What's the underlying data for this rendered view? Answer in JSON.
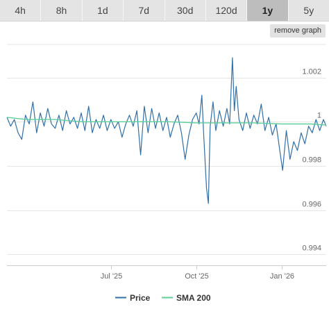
{
  "tabs": [
    {
      "label": "4h",
      "active": false
    },
    {
      "label": "8h",
      "active": false
    },
    {
      "label": "1d",
      "active": false
    },
    {
      "label": "7d",
      "active": false
    },
    {
      "label": "30d",
      "active": false
    },
    {
      "label": "120d",
      "active": false
    },
    {
      "label": "1y",
      "active": true
    },
    {
      "label": "5y",
      "active": false
    }
  ],
  "remove_graph_label": "remove graph",
  "colors": {
    "price": "#2f6fa7",
    "sma": "#5ccf9a",
    "grid": "#e6e6e6",
    "active_tab": "#bdbdbd"
  },
  "chart_data": {
    "type": "line",
    "x_start": "2025-03-11",
    "x_end": "2026-02-18",
    "ylim": [
      0.9935,
      1.0035
    ],
    "yticks": [
      {
        "value": 1.002,
        "label": "1.002"
      },
      {
        "value": 1.0,
        "label": "1"
      },
      {
        "value": 0.998,
        "label": "0.998"
      },
      {
        "value": 0.996,
        "label": "0.996"
      },
      {
        "value": 0.994,
        "label": "0.994"
      }
    ],
    "xticks": [
      {
        "date": "2025-07-01",
        "label": "Jul '25"
      },
      {
        "date": "2025-10-01",
        "label": "Oct '25"
      },
      {
        "date": "2026-01-01",
        "label": "Jan '26"
      }
    ],
    "legend": {
      "position": "bottom-center"
    },
    "grid": true,
    "series": [
      {
        "name": "Price",
        "points": [
          [
            "2025-03-11",
            1.0002
          ],
          [
            "2025-03-15",
            0.9998
          ],
          [
            "2025-03-19",
            1.0001
          ],
          [
            "2025-03-23",
            0.9995
          ],
          [
            "2025-03-27",
            0.9992
          ],
          [
            "2025-03-31",
            1.0003
          ],
          [
            "2025-04-04",
            0.9999
          ],
          [
            "2025-04-08",
            1.0009
          ],
          [
            "2025-04-12",
            0.9995
          ],
          [
            "2025-04-16",
            1.0004
          ],
          [
            "2025-04-20",
            0.9998
          ],
          [
            "2025-04-24",
            1.0006
          ],
          [
            "2025-04-28",
            0.9999
          ],
          [
            "2025-05-02",
            0.9997
          ],
          [
            "2025-05-06",
            1.0003
          ],
          [
            "2025-05-10",
            0.9996
          ],
          [
            "2025-05-14",
            1.0005
          ],
          [
            "2025-05-18",
            0.9999
          ],
          [
            "2025-05-22",
            1.0002
          ],
          [
            "2025-05-26",
            0.9997
          ],
          [
            "2025-05-30",
            1.0004
          ],
          [
            "2025-06-03",
            0.9996
          ],
          [
            "2025-06-07",
            1.0007
          ],
          [
            "2025-06-11",
            0.9995
          ],
          [
            "2025-06-15",
            1.0001
          ],
          [
            "2025-06-19",
            0.9997
          ],
          [
            "2025-06-23",
            1.0003
          ],
          [
            "2025-06-27",
            0.9996
          ],
          [
            "2025-07-01",
            1.0001
          ],
          [
            "2025-07-05",
            0.9997
          ],
          [
            "2025-07-09",
            1.0
          ],
          [
            "2025-07-13",
            0.9993
          ],
          [
            "2025-07-17",
            0.9999
          ],
          [
            "2025-07-21",
            1.0003
          ],
          [
            "2025-07-25",
            0.9998
          ],
          [
            "2025-07-29",
            1.0005
          ],
          [
            "2025-08-02",
            0.9985
          ],
          [
            "2025-08-06",
            1.0007
          ],
          [
            "2025-08-10",
            0.9995
          ],
          [
            "2025-08-14",
            1.0006
          ],
          [
            "2025-08-18",
            0.9997
          ],
          [
            "2025-08-22",
            1.0004
          ],
          [
            "2025-08-26",
            0.9996
          ],
          [
            "2025-08-30",
            1.0002
          ],
          [
            "2025-09-03",
            0.9993
          ],
          [
            "2025-09-07",
            0.9999
          ],
          [
            "2025-09-11",
            1.0003
          ],
          [
            "2025-09-15",
            0.9995
          ],
          [
            "2025-09-19",
            0.9983
          ],
          [
            "2025-09-23",
            0.9994
          ],
          [
            "2025-09-27",
            1.0001
          ],
          [
            "2025-10-01",
            1.0004
          ],
          [
            "2025-10-04",
            0.9999
          ],
          [
            "2025-10-07",
            1.0012
          ],
          [
            "2025-10-09",
            0.9994
          ],
          [
            "2025-10-12",
            0.997
          ],
          [
            "2025-10-14",
            0.9963
          ],
          [
            "2025-10-16",
            0.9998
          ],
          [
            "2025-10-19",
            1.0009
          ],
          [
            "2025-10-22",
            0.9996
          ],
          [
            "2025-10-26",
            1.0005
          ],
          [
            "2025-10-30",
            0.9998
          ],
          [
            "2025-11-03",
            1.0006
          ],
          [
            "2025-11-06",
            0.9999
          ],
          [
            "2025-11-09",
            1.0029
          ],
          [
            "2025-11-11",
            1.0005
          ],
          [
            "2025-11-13",
            1.0016
          ],
          [
            "2025-11-16",
            1.0001
          ],
          [
            "2025-11-20",
            0.9996
          ],
          [
            "2025-11-24",
            1.0004
          ],
          [
            "2025-11-28",
            0.9997
          ],
          [
            "2025-12-02",
            1.0003
          ],
          [
            "2025-12-06",
            0.9999
          ],
          [
            "2025-12-10",
            1.0008
          ],
          [
            "2025-12-14",
            0.9996
          ],
          [
            "2025-12-18",
            1.0002
          ],
          [
            "2025-12-22",
            0.9994
          ],
          [
            "2025-12-26",
            0.9999
          ],
          [
            "2025-12-30",
            0.9987
          ],
          [
            "2026-01-02",
            0.9978
          ],
          [
            "2026-01-06",
            0.9996
          ],
          [
            "2026-01-10",
            0.9983
          ],
          [
            "2026-01-14",
            0.9991
          ],
          [
            "2026-01-18",
            0.9987
          ],
          [
            "2026-01-22",
            0.9995
          ],
          [
            "2026-01-26",
            0.999
          ],
          [
            "2026-01-30",
            0.9998
          ],
          [
            "2026-02-03",
            0.9995
          ],
          [
            "2026-02-07",
            1.0001
          ],
          [
            "2026-02-11",
            0.9996
          ],
          [
            "2026-02-15",
            1.0001
          ],
          [
            "2026-02-18",
            0.9998
          ]
        ]
      },
      {
        "name": "SMA 200",
        "points": [
          [
            "2025-03-11",
            1.0002
          ],
          [
            "2025-04-01",
            1.0001
          ],
          [
            "2025-05-01",
            1.0001
          ],
          [
            "2025-06-01",
            1.0
          ],
          [
            "2025-07-01",
            1.0
          ],
          [
            "2025-08-01",
            1.0
          ],
          [
            "2025-09-01",
            1.0
          ],
          [
            "2025-10-01",
            0.99995
          ],
          [
            "2025-11-01",
            0.99995
          ],
          [
            "2025-12-01",
            0.99995
          ],
          [
            "2026-01-01",
            0.9999
          ],
          [
            "2026-02-01",
            0.9999
          ],
          [
            "2026-02-18",
            0.99985
          ]
        ]
      }
    ]
  }
}
